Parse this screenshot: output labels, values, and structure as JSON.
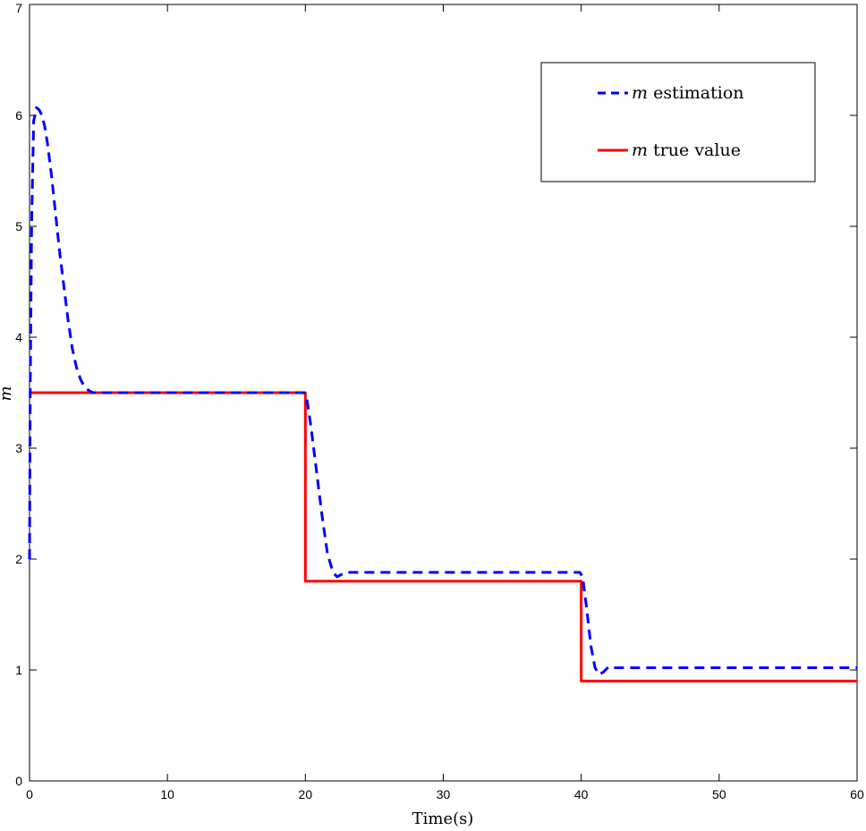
{
  "chart_data": {
    "type": "line",
    "xlabel": "Time(s)",
    "ylabel": "m",
    "xlim": [
      0,
      60
    ],
    "ylim": [
      0,
      7
    ],
    "xticks": [
      0,
      10,
      20,
      30,
      40,
      50,
      60
    ],
    "yticks": [
      0,
      1,
      2,
      3,
      4,
      5,
      6,
      7
    ],
    "grid": false,
    "legend_position": "top-right",
    "series": [
      {
        "name": "m estimation",
        "style": "dashed",
        "color": "#0000ff",
        "x": [
          0,
          0.05,
          0.15,
          0.3,
          0.5,
          0.7,
          0.9,
          1.1,
          1.3,
          1.6,
          1.9,
          2.2,
          2.5,
          2.8,
          3.1,
          3.4,
          3.7,
          4.0,
          4.3,
          4.6,
          5.0,
          6,
          8,
          10,
          12,
          14,
          16,
          18,
          19.9,
          20.1,
          20.4,
          20.8,
          21.2,
          21.6,
          22.0,
          22.3,
          22.6,
          23.0,
          24,
          26,
          28,
          30,
          32,
          34,
          36,
          38,
          39.9,
          40.1,
          40.4,
          40.7,
          41.0,
          41.3,
          41.6,
          42.0,
          42.5,
          43,
          45,
          50,
          55,
          60
        ],
        "y": [
          2.0,
          3.5,
          5.0,
          5.95,
          6.07,
          6.05,
          6.0,
          5.9,
          5.75,
          5.45,
          5.1,
          4.75,
          4.45,
          4.15,
          3.9,
          3.73,
          3.62,
          3.55,
          3.52,
          3.5,
          3.5,
          3.5,
          3.5,
          3.5,
          3.5,
          3.5,
          3.5,
          3.5,
          3.5,
          3.45,
          3.2,
          2.8,
          2.4,
          2.05,
          1.88,
          1.84,
          1.86,
          1.88,
          1.88,
          1.88,
          1.88,
          1.88,
          1.88,
          1.88,
          1.88,
          1.88,
          1.88,
          1.84,
          1.55,
          1.22,
          1.02,
          0.96,
          0.98,
          1.03,
          1.02,
          1.02,
          1.02,
          1.02,
          1.02,
          1.02
        ]
      },
      {
        "name": "m true value",
        "style": "solid",
        "color": "#ff0000",
        "x": [
          0,
          20,
          20,
          40,
          40,
          60
        ],
        "y": [
          3.5,
          3.5,
          1.8,
          1.8,
          0.9,
          0.9
        ]
      }
    ]
  },
  "legend": {
    "estimation_var": "m",
    "estimation_text": "estimation",
    "true_var": "m",
    "true_text": "true value"
  }
}
